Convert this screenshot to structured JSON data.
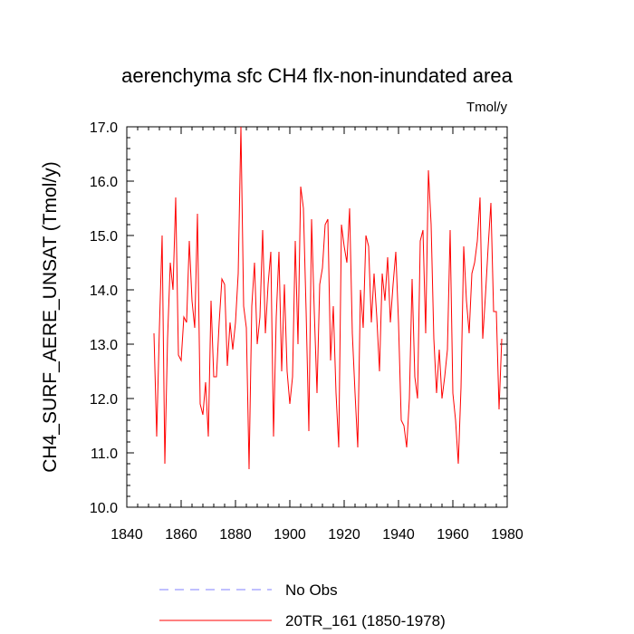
{
  "chart_data": {
    "type": "line",
    "title": "aerenchyma sfc CH4 flx-non-inundated area",
    "units": "Tmol/y",
    "xlabel": "",
    "ylabel": "CH4_SURF_AERE_UNSAT  (Tmol/y)",
    "xlim": [
      1840,
      1980
    ],
    "ylim": [
      10.0,
      17.0
    ],
    "xticks": [
      1840,
      1860,
      1880,
      1900,
      1920,
      1940,
      1960,
      1980
    ],
    "xtick_labels": [
      "1840",
      "1860",
      "1880",
      "1900",
      "1920",
      "1940",
      "1960",
      "1980"
    ],
    "yticks": [
      10.0,
      11.0,
      12.0,
      13.0,
      14.0,
      15.0,
      16.0,
      17.0
    ],
    "ytick_labels": [
      "10.0",
      "11.0",
      "12.0",
      "13.0",
      "14.0",
      "15.0",
      "16.0",
      "17.0"
    ],
    "grid": false,
    "legend_position": "bottom",
    "series": [
      {
        "name": "No Obs",
        "color": "#8080ff",
        "dash": true,
        "x": [],
        "values": []
      },
      {
        "name": "20TR_161 (1850-1978)",
        "color": "#ff0000",
        "dash": false,
        "x": [
          1850,
          1851,
          1852,
          1853,
          1854,
          1855,
          1856,
          1857,
          1858,
          1859,
          1860,
          1861,
          1862,
          1863,
          1864,
          1865,
          1866,
          1867,
          1868,
          1869,
          1870,
          1871,
          1872,
          1873,
          1874,
          1875,
          1876,
          1877,
          1878,
          1879,
          1880,
          1881,
          1882,
          1883,
          1884,
          1885,
          1886,
          1887,
          1888,
          1889,
          1890,
          1891,
          1892,
          1893,
          1894,
          1895,
          1896,
          1897,
          1898,
          1899,
          1900,
          1901,
          1902,
          1903,
          1904,
          1905,
          1906,
          1907,
          1908,
          1909,
          1910,
          1911,
          1912,
          1913,
          1914,
          1915,
          1916,
          1917,
          1918,
          1919,
          1920,
          1921,
          1922,
          1923,
          1924,
          1925,
          1926,
          1927,
          1928,
          1929,
          1930,
          1931,
          1932,
          1933,
          1934,
          1935,
          1936,
          1937,
          1938,
          1939,
          1940,
          1941,
          1942,
          1943,
          1944,
          1945,
          1946,
          1947,
          1948,
          1949,
          1950,
          1951,
          1952,
          1953,
          1954,
          1955,
          1956,
          1957,
          1958,
          1959,
          1960,
          1961,
          1962,
          1963,
          1964,
          1965,
          1966,
          1967,
          1968,
          1969,
          1970,
          1971,
          1972,
          1973,
          1974,
          1975,
          1976,
          1977,
          1978
        ],
        "values": [
          13.2,
          11.3,
          13.3,
          15.0,
          10.8,
          13.1,
          14.5,
          14.0,
          15.7,
          12.8,
          12.7,
          13.5,
          13.4,
          14.9,
          13.8,
          13.3,
          15.4,
          11.9,
          11.7,
          12.3,
          11.3,
          13.8,
          12.4,
          12.4,
          13.4,
          14.2,
          14.1,
          12.6,
          13.4,
          12.9,
          13.4,
          14.3,
          17.0,
          13.7,
          13.3,
          10.7,
          13.7,
          14.5,
          13.0,
          13.5,
          15.1,
          13.2,
          14.1,
          14.7,
          11.3,
          13.5,
          14.7,
          12.5,
          14.1,
          12.5,
          11.9,
          12.4,
          14.9,
          13.0,
          15.9,
          15.5,
          13.6,
          11.4,
          15.3,
          13.6,
          12.1,
          14.1,
          14.4,
          15.2,
          15.3,
          12.7,
          13.7,
          12.1,
          11.1,
          15.2,
          14.8,
          14.5,
          15.5,
          13.2,
          12.1,
          11.1,
          14.0,
          13.3,
          15.0,
          14.8,
          13.4,
          14.3,
          13.5,
          12.5,
          14.3,
          13.8,
          14.6,
          13.4,
          14.1,
          14.7,
          13.4,
          11.6,
          11.5,
          11.1,
          12.0,
          14.2,
          12.4,
          12.0,
          14.9,
          15.1,
          13.2,
          16.2,
          15.2,
          13.1,
          12.1,
          12.9,
          12.0,
          12.4,
          12.9,
          15.1,
          12.1,
          11.6,
          10.8,
          12.2,
          14.8,
          13.8,
          13.2,
          14.3,
          14.5,
          14.9,
          15.7,
          13.1,
          13.9,
          14.8,
          15.6,
          13.6,
          13.6,
          11.8,
          13.1
        ]
      }
    ]
  }
}
